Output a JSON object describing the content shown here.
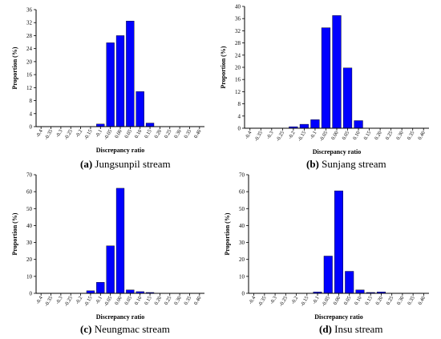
{
  "chart_data": [
    {
      "type": "bar",
      "panel_letter": "(a)",
      "caption": "Jungsunpil stream",
      "categories": [
        "-0.4",
        "-0.35",
        "-0.3",
        "-0.25",
        "-0.2",
        "-0.15",
        "-0.1",
        "-0.05",
        "0.00",
        "0.05",
        "0.10",
        "0.15",
        "0.20",
        "0.25",
        "0.30",
        "0.35",
        "0.40"
      ],
      "values": [
        0,
        0,
        0,
        0,
        0,
        0,
        0.8,
        25.8,
        28,
        32.5,
        10.8,
        1.1,
        0,
        0,
        0,
        0,
        0
      ],
      "xlabel": "Discrepancy ratio",
      "ylabel": "Proportion (%)",
      "ylim": [
        0,
        36
      ],
      "yticks": [
        0,
        4,
        8,
        12,
        16,
        20,
        24,
        28,
        32,
        36
      ],
      "bar_color": "#0000ff"
    },
    {
      "type": "bar",
      "panel_letter": "(b)",
      "caption": "Sunjang stream",
      "categories": [
        "-0.4",
        "-0.35",
        "-0.3",
        "-0.25",
        "-0.2",
        "-0.15",
        "-0.1",
        "-0.05",
        "0.00",
        "0.05",
        "0.10",
        "0.15",
        "0.20",
        "0.25",
        "0.30",
        "0.35",
        "0.40"
      ],
      "values": [
        0,
        0,
        0,
        0,
        0.5,
        1.3,
        2.8,
        33,
        37,
        19.8,
        2.5,
        0,
        0,
        0,
        0,
        0,
        0
      ],
      "xlabel": "Discrepancy ratio",
      "ylabel": "Proportion (%)",
      "ylim": [
        0,
        40
      ],
      "yticks": [
        0,
        4,
        8,
        12,
        16,
        20,
        24,
        28,
        32,
        36,
        40
      ],
      "bar_color": "#0000ff"
    },
    {
      "type": "bar",
      "panel_letter": "(c)",
      "caption": "Neungmac stream",
      "categories": [
        "-0.4",
        "-0.35",
        "-0.3",
        "-0.25",
        "-0.2",
        "-0.15",
        "-0.1",
        "-0.05",
        "0.00",
        "0.05",
        "0.10",
        "0.15",
        "0.20",
        "0.25",
        "0.30",
        "0.35",
        "0.40"
      ],
      "values": [
        0,
        0,
        0,
        0,
        0,
        1.5,
        6.5,
        28,
        62,
        2,
        1,
        0.5,
        0,
        0,
        0,
        0,
        0
      ],
      "xlabel": "Discrepancy ratio",
      "ylabel": "Proportion (%)",
      "ylim": [
        0,
        70
      ],
      "yticks": [
        0,
        10,
        20,
        30,
        40,
        50,
        60,
        70
      ],
      "bar_color": "#0000ff"
    },
    {
      "type": "bar",
      "panel_letter": "(d)",
      "caption": "Insu stream",
      "categories": [
        "-0.4",
        "-0.35",
        "-0.3",
        "-0.25",
        "-0.2",
        "-0.15",
        "-0.1",
        "-0.05",
        "0.00",
        "0.05",
        "0.10",
        "0.15",
        "0.20",
        "0.25",
        "0.30",
        "0.35",
        "0.40"
      ],
      "values": [
        0,
        0,
        0,
        0,
        0,
        0,
        0.8,
        22,
        60.5,
        13,
        2,
        0.5,
        0.8,
        0,
        0,
        0,
        0
      ],
      "xlabel": "Discrepancy ratio",
      "ylabel": "Proportion (%)",
      "ylim": [
        0,
        70
      ],
      "yticks": [
        0,
        10,
        20,
        30,
        40,
        50,
        60,
        70
      ],
      "bar_color": "#0000ff"
    }
  ]
}
